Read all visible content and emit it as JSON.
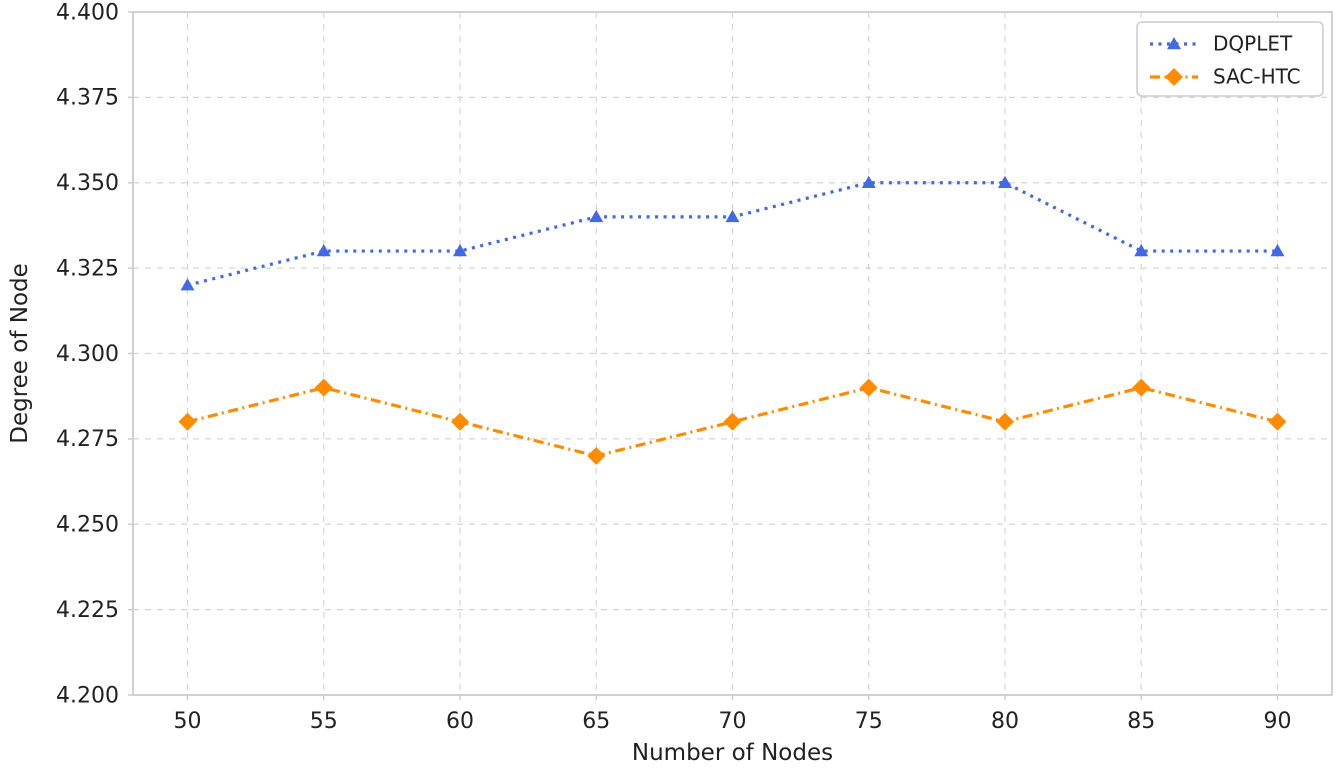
{
  "chart_data": {
    "type": "line",
    "title": "",
    "xlabel": "Number of Nodes",
    "ylabel": "Degree of Node",
    "x": [
      50,
      55,
      60,
      65,
      70,
      75,
      80,
      85,
      90
    ],
    "series": [
      {
        "name": "DQPLET",
        "values": [
          4.32,
          4.33,
          4.33,
          4.34,
          4.34,
          4.35,
          4.35,
          4.33,
          4.33
        ],
        "color": "#4169e1",
        "marker": "triangle-up",
        "linestyle": "dotted"
      },
      {
        "name": "SAC-HTC",
        "values": [
          4.28,
          4.29,
          4.28,
          4.27,
          4.28,
          4.29,
          4.28,
          4.29,
          4.28
        ],
        "color": "#ff8c00",
        "marker": "diamond",
        "linestyle": "dashdot"
      }
    ],
    "xlim": [
      48,
      92
    ],
    "ylim": [
      4.2,
      4.4
    ],
    "xticks": [
      50,
      55,
      60,
      65,
      70,
      75,
      80,
      85,
      90
    ],
    "xtick_labels": [
      "50",
      "55",
      "60",
      "65",
      "70",
      "75",
      "80",
      "85",
      "90"
    ],
    "yticks": [
      4.2,
      4.225,
      4.25,
      4.275,
      4.3,
      4.325,
      4.35,
      4.375,
      4.4
    ],
    "ytick_labels": [
      "4.200",
      "4.225",
      "4.250",
      "4.275",
      "4.300",
      "4.325",
      "4.350",
      "4.375",
      "4.400"
    ],
    "grid": true,
    "grid_style": "dashed",
    "legend_position": "upper right",
    "legend_items": [
      "DQPLET",
      "SAC-HTC"
    ]
  },
  "colors": {
    "series_dqplet": "#4169e1",
    "series_sac_htc": "#ff8c00",
    "grid": "#d5d5d5",
    "spine": "#cccccc",
    "text": "#212121",
    "background": "#ffffff"
  }
}
